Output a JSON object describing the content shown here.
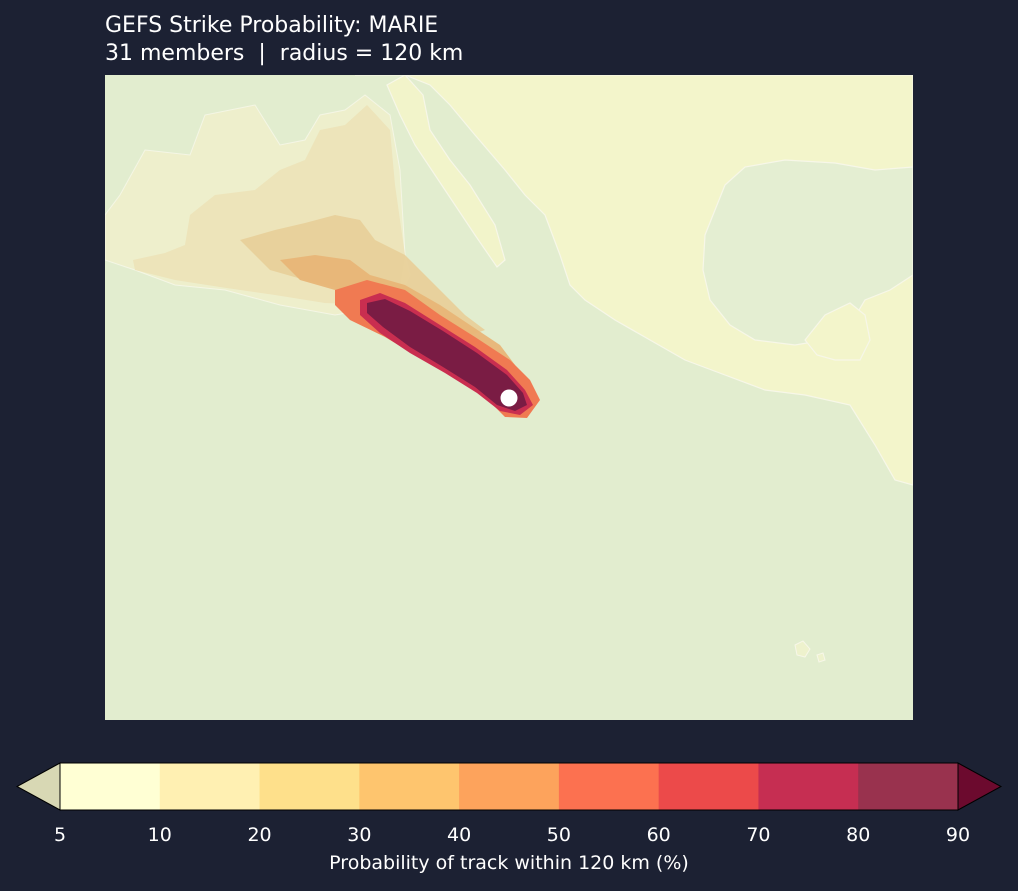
{
  "title": {
    "line1": "GEFS Strike Probability: MARIE",
    "line2": "31 members  |  radius = 120 km"
  },
  "map": {
    "storm": "MARIE",
    "marker": "current-position",
    "colors": {
      "ocean": "#e2edcf",
      "land": "#f3f5cb",
      "coastline": "#f7f7e8"
    }
  },
  "colorbar": {
    "label": "Probability of track within 120 km (%)",
    "ticks": [
      "5",
      "10",
      "20",
      "30",
      "40",
      "50",
      "60",
      "70",
      "80",
      "90"
    ],
    "levels": [
      5,
      10,
      20,
      30,
      40,
      50,
      60,
      70,
      80,
      90
    ],
    "under_color": "#d8d8b4",
    "over_color": "#6c0a2e",
    "colors": [
      "#ffffd4",
      "#fff0b2",
      "#fee08b",
      "#fec56e",
      "#fda35c",
      "#fc7150",
      "#ec4a4a",
      "#c62e52",
      "#99324e"
    ]
  }
}
